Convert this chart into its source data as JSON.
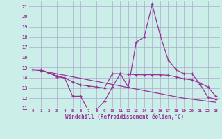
{
  "xlabel": "Windchill (Refroidissement éolien,°C)",
  "background_color": "#cceee8",
  "grid_color": "#aaaacc",
  "line_color": "#993399",
  "xlim": [
    -0.5,
    23.5
  ],
  "ylim": [
    11,
    21.5
  ],
  "yticks": [
    11,
    12,
    13,
    14,
    15,
    16,
    17,
    18,
    19,
    20,
    21
  ],
  "xticks": [
    0,
    1,
    2,
    3,
    4,
    5,
    6,
    7,
    8,
    9,
    10,
    11,
    12,
    13,
    14,
    15,
    16,
    17,
    18,
    19,
    20,
    21,
    22,
    23
  ],
  "hours": [
    0,
    1,
    2,
    3,
    4,
    5,
    6,
    7,
    8,
    9,
    10,
    11,
    12,
    13,
    14,
    15,
    16,
    17,
    18,
    19,
    20,
    21,
    22,
    23
  ],
  "temp_curve": [
    14.8,
    14.8,
    14.5,
    14.1,
    14.0,
    12.2,
    12.2,
    10.8,
    10.9,
    11.7,
    13.1,
    14.4,
    13.1,
    17.5,
    18.0,
    21.2,
    18.2,
    15.8,
    14.8,
    14.4,
    14.4,
    13.4,
    12.1,
    11.9
  ],
  "windchill_curve": [
    14.8,
    14.7,
    14.5,
    14.2,
    14.0,
    13.6,
    13.3,
    13.2,
    13.1,
    13.0,
    14.4,
    14.4,
    14.35,
    14.3,
    14.3,
    14.3,
    14.3,
    14.25,
    14.1,
    13.9,
    13.8,
    13.5,
    13.1,
    12.2
  ],
  "linear_curve": [
    14.8,
    14.7,
    14.55,
    14.4,
    14.25,
    14.1,
    13.95,
    13.8,
    13.65,
    13.5,
    13.35,
    13.2,
    13.05,
    12.9,
    12.75,
    12.6,
    12.45,
    12.3,
    12.15,
    12.0,
    11.9,
    11.8,
    11.7,
    11.6
  ]
}
